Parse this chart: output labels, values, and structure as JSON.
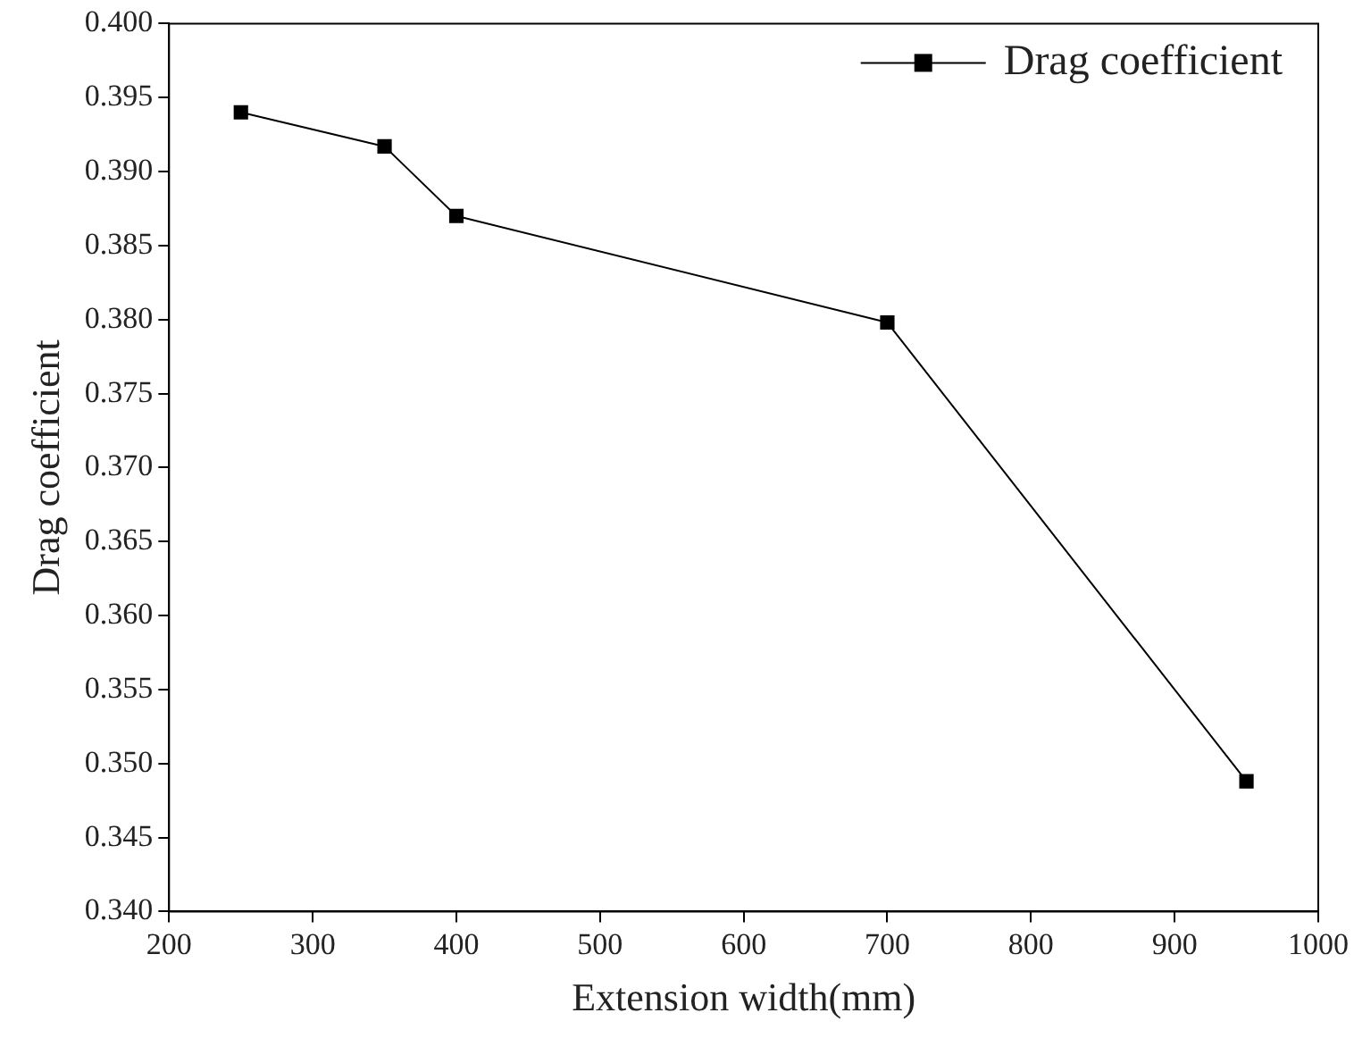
{
  "chart_data": {
    "type": "line",
    "xlabel": "Extension width(mm)",
    "ylabel": "Drag coefficient",
    "x": [
      250,
      350,
      400,
      700,
      950
    ],
    "series": [
      {
        "name": "Drag coefficient",
        "color": "#000000",
        "values": [
          0.394,
          0.3917,
          0.387,
          0.3798,
          0.3488
        ]
      }
    ],
    "xlim": [
      200,
      1000
    ],
    "xticks": [
      200,
      300,
      400,
      500,
      600,
      700,
      800,
      900,
      1000
    ],
    "ylim": [
      0.34,
      0.4
    ],
    "yticks": [
      {
        "value": 0.34,
        "label": "0.340"
      },
      {
        "value": 0.345,
        "label": "0.345"
      },
      {
        "value": 0.35,
        "label": "0.350"
      },
      {
        "value": 0.355,
        "label": "0.355"
      },
      {
        "value": 0.36,
        "label": "0.360"
      },
      {
        "value": 0.365,
        "label": "0.365"
      },
      {
        "value": 0.37,
        "label": "0.370"
      },
      {
        "value": 0.375,
        "label": "0.375"
      },
      {
        "value": 0.38,
        "label": "0.380"
      },
      {
        "value": 0.385,
        "label": "0.385"
      },
      {
        "value": 0.39,
        "label": "0.390"
      },
      {
        "value": 0.395,
        "label": "0.395"
      },
      {
        "value": 0.4,
        "label": "0.400"
      }
    ],
    "grid": false,
    "legend": "top right",
    "marker": "square",
    "line_style": "solid"
  }
}
